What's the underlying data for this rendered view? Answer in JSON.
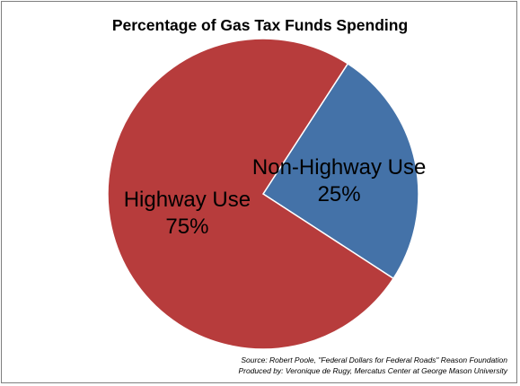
{
  "chart_data": {
    "type": "pie",
    "title": "Percentage of Gas Tax Funds Spending",
    "slices": [
      {
        "label": "Non-Highway Use",
        "value": 25,
        "value_label": "25%",
        "color": "#4472a8"
      },
      {
        "label": "Highway Use",
        "value": 75,
        "value_label": "75%",
        "color": "#b73c3c"
      }
    ],
    "legend": "none",
    "source": "Source:  Robert Poole, \"Federal Dollars for Federal Roads\" Reason Foundation",
    "producer": "Produced by: Veronique de Rugy,  Mercatus Center at George Mason University"
  }
}
